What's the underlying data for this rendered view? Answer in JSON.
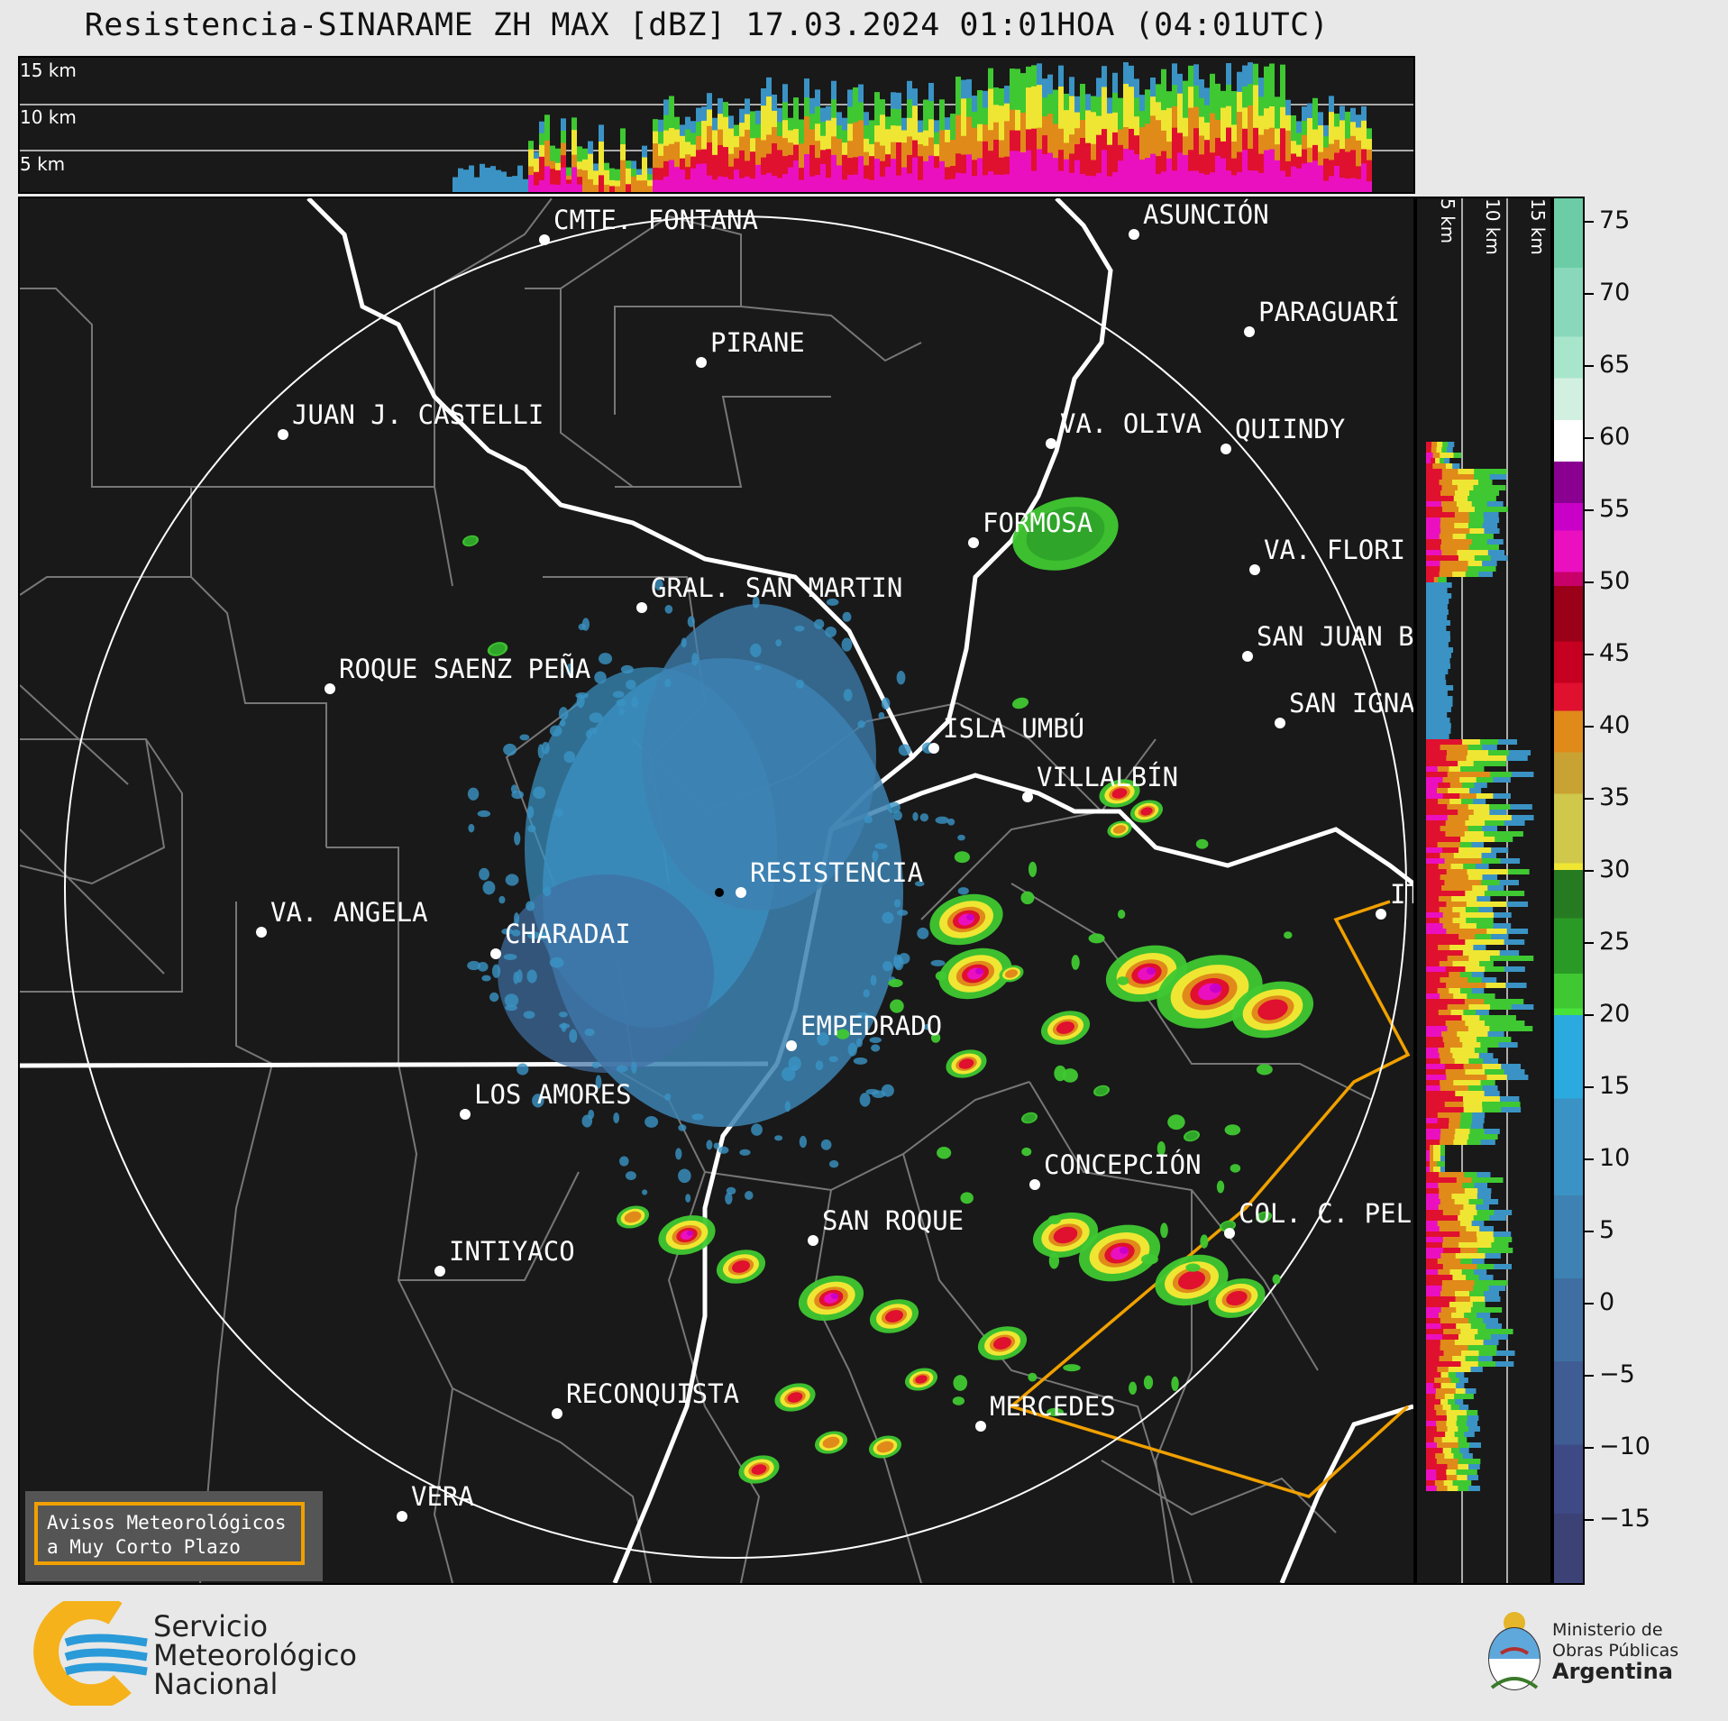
{
  "title": "Resistencia-SINARAME ZH MAX [dBZ] 17.03.2024 01:01HOA (04:01UTC)",
  "top_strip": {
    "labels": [
      "15 km",
      "10 km",
      "5 km"
    ]
  },
  "right_strip": {
    "labels": [
      "5 km",
      "10 km",
      "15 km"
    ]
  },
  "colorbar": {
    "ticks": [
      "75",
      "70",
      "65",
      "60",
      "55",
      "50",
      "45",
      "40",
      "35",
      "30",
      "25",
      "20",
      "15",
      "10",
      "5",
      "0",
      "−5",
      "−10",
      "−15"
    ],
    "colors": {
      "c_-20": "#3b3a66",
      "c_-15": "#3c4276",
      "c_-10": "#3e4a85",
      "c_-5": "#3f5d94",
      "c_0": "#3f6fa2",
      "c_5": "#3d82b2",
      "c_10": "#3a93c4",
      "c_15": "#2aaade",
      "c_18": "#47e23a",
      "c_20": "#3fc832",
      "c_25": "#2a9a26",
      "c_28": "#267a22",
      "c_30": "#efe633",
      "c_35": "#cfc84a",
      "c_38": "#c8a232",
      "c_40": "#e08a1a",
      "c_43": "#e0102f",
      "c_45": "#c50020",
      "c_48": "#9a0018",
      "c_50": "#c8006a",
      "c_53": "#ea10c0",
      "c_55": "#c800c8",
      "c_58": "#8a0090",
      "c_60": "#ffffff",
      "c_63": "#d2f0e0",
      "c_66": "#a8e6cc",
      "c_70": "#8ad8bc",
      "c_75": "#6ccca6"
    }
  },
  "cities": [
    {
      "name": "CMTE. FONTANA"
    },
    {
      "name": "ASUNCIÓN"
    },
    {
      "name": "PIRANE"
    },
    {
      "name": "PARAGUARÍ"
    },
    {
      "name": "JUAN J. CASTELLI"
    },
    {
      "name": "VA. OLIVA"
    },
    {
      "name": "QUIINDY"
    },
    {
      "name": "FORMOSA"
    },
    {
      "name": "VA. FLORI"
    },
    {
      "name": "GRAL. SAN MARTIN"
    },
    {
      "name": "SAN JUAN B"
    },
    {
      "name": "ROQUE SAENZ PEÑA"
    },
    {
      "name": "SAN IGNA"
    },
    {
      "name": "ISLA UMBÚ"
    },
    {
      "name": "VILLALBÍN"
    },
    {
      "name": "RESISTENCIA"
    },
    {
      "name": "VA. ANGELA"
    },
    {
      "name": "CHARADAI"
    },
    {
      "name": "IT"
    },
    {
      "name": "EMPEDRADO"
    },
    {
      "name": "LOS AMORES"
    },
    {
      "name": "CONCEPCIÓN"
    },
    {
      "name": "COL. C. PEL"
    },
    {
      "name": "SAN ROQUE"
    },
    {
      "name": "INTIYACO"
    },
    {
      "name": "MERCEDES"
    },
    {
      "name": "RECONQUISTA"
    },
    {
      "name": "VERA"
    }
  ],
  "warning_box": {
    "line1": "Avisos Meteorológicos",
    "line2": "a Muy Corto Plazo"
  },
  "logo_smn": {
    "line1": "Servicio",
    "line2": "Meteorológico",
    "line3": "Nacional"
  },
  "logo_ministry": {
    "line1": "Ministerio de",
    "line2": "Obras Públicas",
    "line3": "Argentina"
  }
}
